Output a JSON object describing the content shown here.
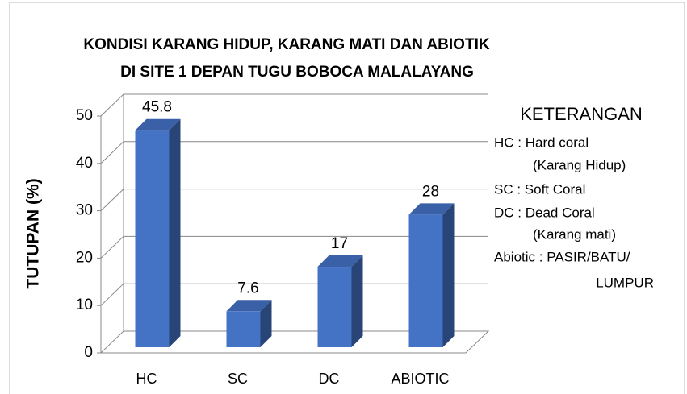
{
  "chart_data": {
    "type": "bar3d",
    "title": [
      "KONDISI KARANG HIDUP, KARANG MATI DAN ABIOTIK",
      "DI SITE 1 DEPAN TUGU BOBOCA MALALAYANG"
    ],
    "y_label": "TUTUPAN (%)",
    "categories": [
      "HC",
      "SC",
      "DC",
      "ABIOTIC"
    ],
    "values": [
      45.8,
      7.6,
      17,
      28
    ],
    "color": "#4472c4",
    "ylim": [
      0,
      50
    ],
    "yticks": [
      0,
      10,
      20,
      30,
      40,
      50
    ],
    "grid": true,
    "legend": {
      "title": "KETERANGAN",
      "lines": [
        "HC : Hard coral",
        "(Karang Hidup)",
        "SC : Soft Coral",
        "DC : Dead Coral",
        "(Karang mati)",
        "Abiotic : PASIR/BATU/",
        "LUMPUR"
      ]
    }
  }
}
